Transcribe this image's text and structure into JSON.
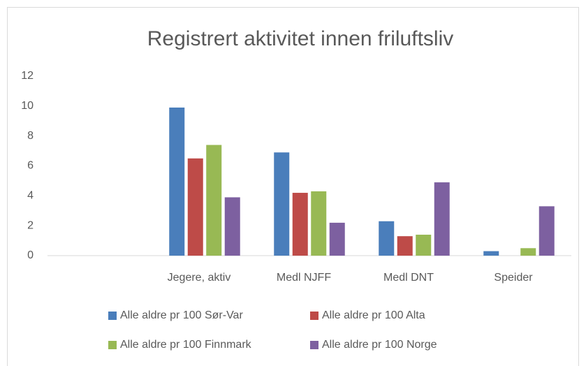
{
  "chart_data": {
    "type": "bar",
    "title": "Registrert aktivitet innen friluftsliv",
    "categories": [
      null,
      "Jegere, aktiv",
      "Medl NJFF",
      "Medl DNT",
      "Speider"
    ],
    "series": [
      {
        "name": "Alle aldre pr 100 Sør-Var",
        "color": "#4a7ebb",
        "values": [
          null,
          9.9,
          6.9,
          2.3,
          0.3
        ]
      },
      {
        "name": "Alle aldre pr 100 Alta",
        "color": "#be4b48",
        "values": [
          null,
          6.5,
          4.2,
          1.3,
          0
        ]
      },
      {
        "name": "Alle aldre pr 100 Finnmark",
        "color": "#98b954",
        "values": [
          null,
          7.4,
          4.3,
          1.4,
          0.5
        ]
      },
      {
        "name": "Alle aldre pr 100 Norge",
        "color": "#7d60a0",
        "values": [
          null,
          3.9,
          2.2,
          4.9,
          3.3
        ]
      }
    ],
    "ylim": [
      0,
      12
    ],
    "yticks": [
      0,
      2,
      4,
      6,
      8,
      10,
      12
    ],
    "grid": false,
    "legend": "bottom"
  }
}
